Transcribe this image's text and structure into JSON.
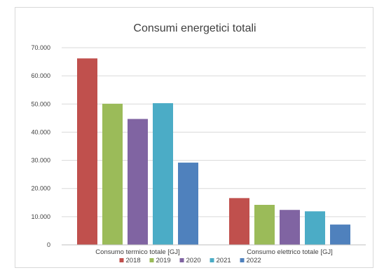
{
  "chart_data": {
    "type": "bar",
    "title": "Consumi energetici totali",
    "categories": [
      "Consumo termico totale [GJ]",
      "Consumo elettrico totale [GJ]"
    ],
    "series": [
      {
        "name": "2018",
        "color": "#c0504d",
        "values": [
          66200,
          16600
        ]
      },
      {
        "name": "2019",
        "color": "#9bbb59",
        "values": [
          50100,
          14200
        ]
      },
      {
        "name": "2020",
        "color": "#8064a2",
        "values": [
          44700,
          12400
        ]
      },
      {
        "name": "2021",
        "color": "#4bacc6",
        "values": [
          50300,
          11900
        ]
      },
      {
        "name": "2022",
        "color": "#4f81bd",
        "values": [
          29200,
          7200
        ]
      }
    ],
    "ylim": [
      0,
      70000
    ],
    "yticks": [
      0,
      10000,
      20000,
      30000,
      40000,
      50000,
      60000,
      70000
    ],
    "ytick_labels": [
      "0",
      "10.000",
      "20.000",
      "30.000",
      "40.000",
      "50.000",
      "60.000",
      "70.000"
    ],
    "xlabel": "",
    "ylabel": "",
    "grid": true,
    "legend_position": "bottom"
  }
}
